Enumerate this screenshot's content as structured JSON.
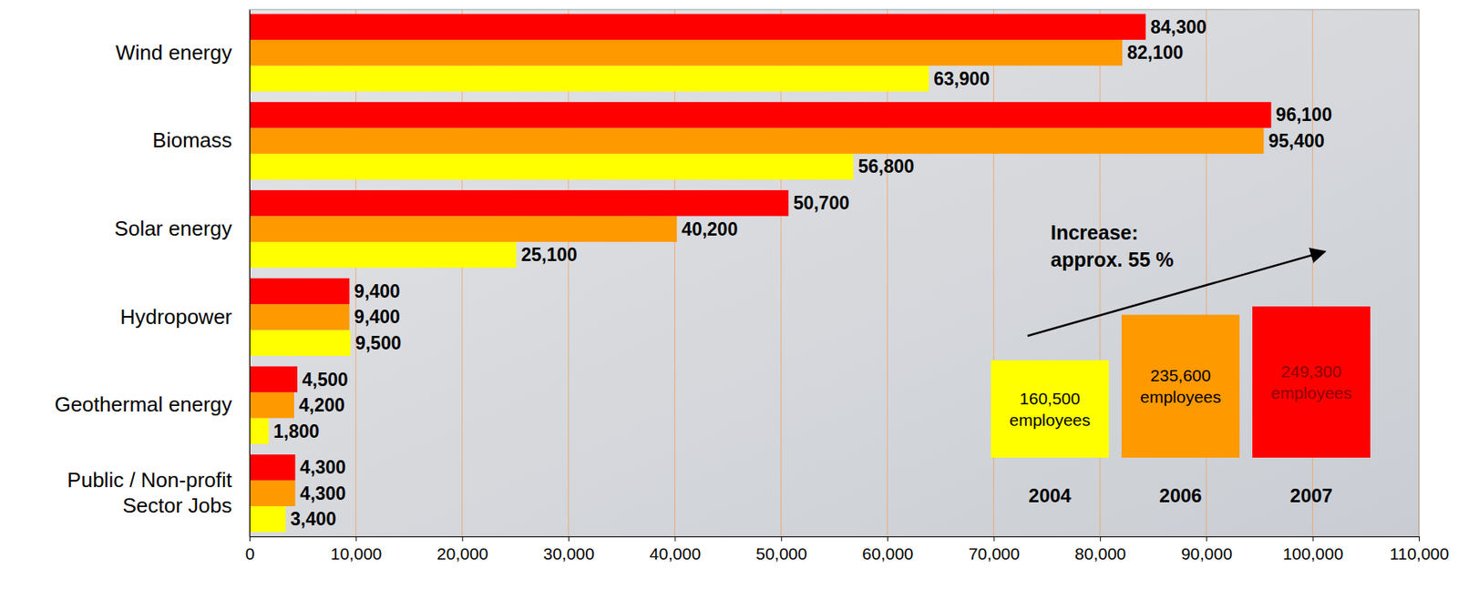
{
  "chart_data": {
    "type": "bar",
    "orientation": "horizontal",
    "categories": [
      "Wind energy",
      "Biomass",
      "Solar energy",
      "Hydropower",
      "Geothermal energy",
      "Public / Non-profit\nSector Jobs"
    ],
    "series": [
      {
        "name": "2004",
        "color": "#ffff00",
        "values": [
          63900,
          56800,
          25100,
          9500,
          1800,
          3400
        ],
        "value_labels": [
          "63,900",
          "56,800",
          "25,100",
          "9,500",
          "1,800",
          "3,400"
        ],
        "total": 160500,
        "total_label": "160,500 employees"
      },
      {
        "name": "2006",
        "color": "#ff9900",
        "values": [
          82100,
          95400,
          40200,
          9400,
          4200,
          4300
        ],
        "value_labels": [
          "82,100",
          "95,400",
          "40,200",
          "9,400",
          "4,200",
          "4,300"
        ],
        "total": 235600,
        "total_label": "235,600 employees"
      },
      {
        "name": "2007",
        "color": "#ff0000",
        "values": [
          84300,
          96100,
          50700,
          9400,
          4500,
          4300
        ],
        "value_labels": [
          "84,300",
          "96,100",
          "50,700",
          "9,400",
          "4,500",
          "4,300"
        ],
        "total": 249300,
        "total_label": "249,300 employees"
      }
    ],
    "xlim": [
      0,
      110000
    ],
    "xticks": [
      0,
      {
        "value": 10000,
        "label": "10,000"
      },
      {
        "value": 20000,
        "label": "20,000"
      },
      {
        "value": 30000,
        "label": "30,000"
      },
      {
        "value": 40000,
        "label": "40,000"
      },
      {
        "value": 50000,
        "label": "50,000"
      },
      {
        "value": 60000,
        "label": "60,000"
      },
      {
        "value": 70000,
        "label": "70,000"
      },
      {
        "value": 80000,
        "label": "80,000"
      },
      {
        "value": 90000,
        "label": "90,000"
      },
      {
        "value": 100000,
        "label": "100,000"
      },
      {
        "value": 110000,
        "label": "110,000"
      }
    ],
    "grid": true,
    "data_labels": true,
    "annotation": "Increase:\napprox. 55 %"
  }
}
